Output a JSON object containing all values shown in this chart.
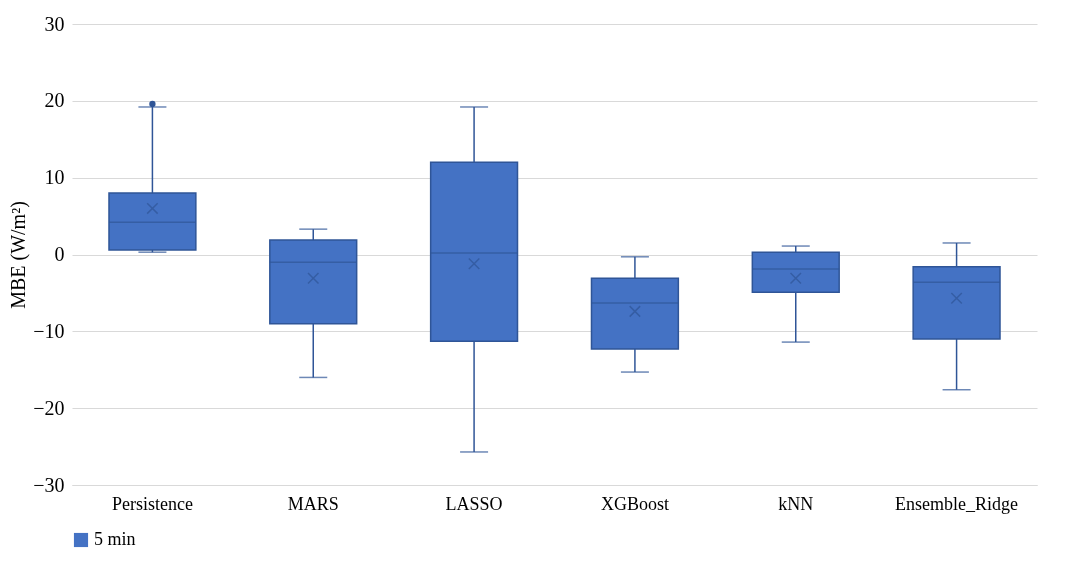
{
  "chart_data": {
    "type": "box",
    "ylabel": "MBE (W/m²)",
    "categories": [
      "Persistence",
      "MARS",
      "LASSO",
      "XGBoost",
      "kNN",
      "Ensemble_Ridge"
    ],
    "series": [
      {
        "name": "5 min",
        "color": "#4472c4",
        "boxes": [
          {
            "low": 0.3,
            "q1": 0.6,
            "median": 4.2,
            "q3": 8.0,
            "high": 19.2,
            "mean": 6.0,
            "outliers": [
              19.6
            ]
          },
          {
            "low": -16.0,
            "q1": -9.0,
            "median": -1.0,
            "q3": 1.9,
            "high": 3.3,
            "mean": -3.1
          },
          {
            "low": -25.7,
            "q1": -11.3,
            "median": 0.2,
            "q3": 12.0,
            "high": 19.2,
            "mean": -1.2
          },
          {
            "low": -15.3,
            "q1": -12.3,
            "median": -6.3,
            "q3": -3.1,
            "high": -0.3,
            "mean": -7.4
          },
          {
            "low": -11.4,
            "q1": -4.9,
            "median": -1.9,
            "q3": 0.3,
            "high": 1.1,
            "mean": -3.1
          },
          {
            "low": -17.6,
            "q1": -11.0,
            "median": -3.6,
            "q3": -1.6,
            "high": 1.5,
            "mean": -5.7
          }
        ]
      }
    ],
    "ylim": [
      -30,
      30
    ],
    "yticks": [
      -30,
      -20,
      -10,
      0,
      10,
      20,
      30
    ],
    "grid": "y",
    "legend": "bottom"
  }
}
